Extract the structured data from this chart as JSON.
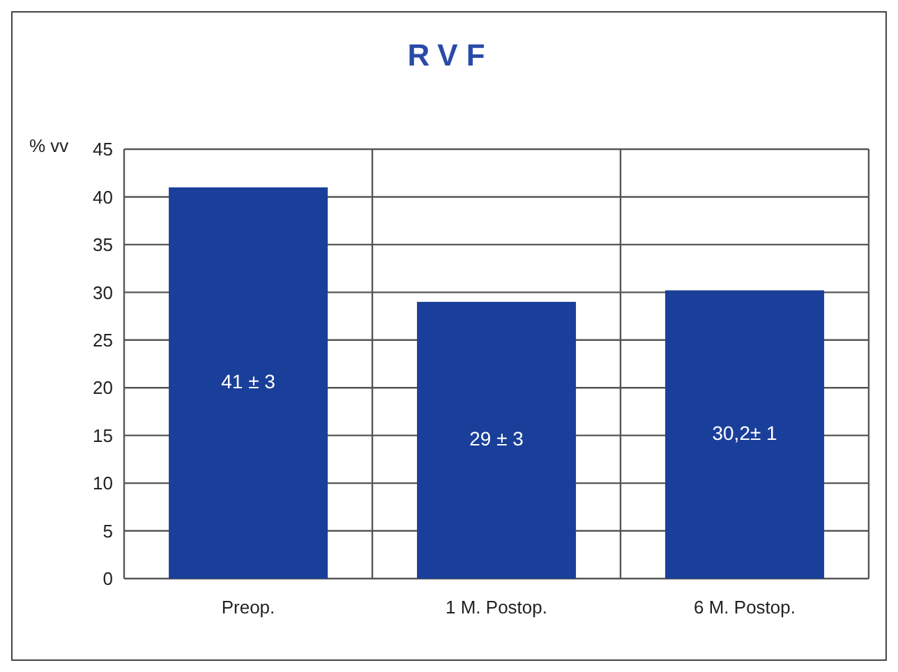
{
  "chart_data": {
    "type": "bar",
    "title": "RVF",
    "ylabel": "% vv",
    "categories": [
      "Preop.",
      "1 M. Postop.",
      "6 M. Postop."
    ],
    "values": [
      41,
      29,
      30.2
    ],
    "value_labels": [
      "41 ± 3",
      "29 ± 3",
      "30,2± 1"
    ],
    "color": "#1a3f9a",
    "ylim": [
      0,
      45
    ],
    "yticks": [
      0,
      5,
      10,
      15,
      20,
      25,
      30,
      35,
      40,
      45
    ],
    "grid": true
  }
}
